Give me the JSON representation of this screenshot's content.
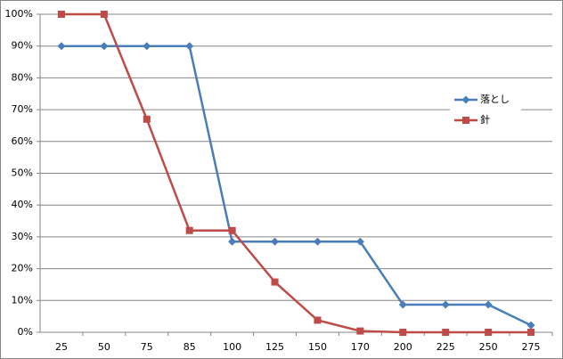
{
  "chart_data": {
    "type": "line",
    "categories": [
      "25",
      "50",
      "75",
      "85",
      "100",
      "125",
      "150",
      "170",
      "200",
      "225",
      "250",
      "275"
    ],
    "series": [
      {
        "name": "落とし",
        "color": "#4a7ebb",
        "marker": "diamond",
        "values": [
          90,
          90,
          90,
          90,
          28.5,
          28.5,
          28.5,
          28.5,
          8.7,
          8.7,
          8.7,
          2.2
        ]
      },
      {
        "name": "針",
        "color": "#be4b48",
        "marker": "square",
        "values": [
          100,
          100,
          67,
          32,
          32,
          15.8,
          3.8,
          0.4,
          0,
          0,
          0,
          0
        ]
      }
    ],
    "ylim": [
      0,
      100
    ],
    "yticks": [
      {
        "value": 0,
        "label": "0%"
      },
      {
        "value": 10,
        "label": "10%"
      },
      {
        "value": 20,
        "label": "20%"
      },
      {
        "value": 30,
        "label": "30%"
      },
      {
        "value": 40,
        "label": "40%"
      },
      {
        "value": 50,
        "label": "50%"
      },
      {
        "value": 60,
        "label": "60%"
      },
      {
        "value": 70,
        "label": "70%"
      },
      {
        "value": 80,
        "label": "80%"
      },
      {
        "value": 90,
        "label": "90%"
      },
      {
        "value": 100,
        "label": "100%"
      }
    ],
    "grid": true,
    "legend": "right"
  }
}
